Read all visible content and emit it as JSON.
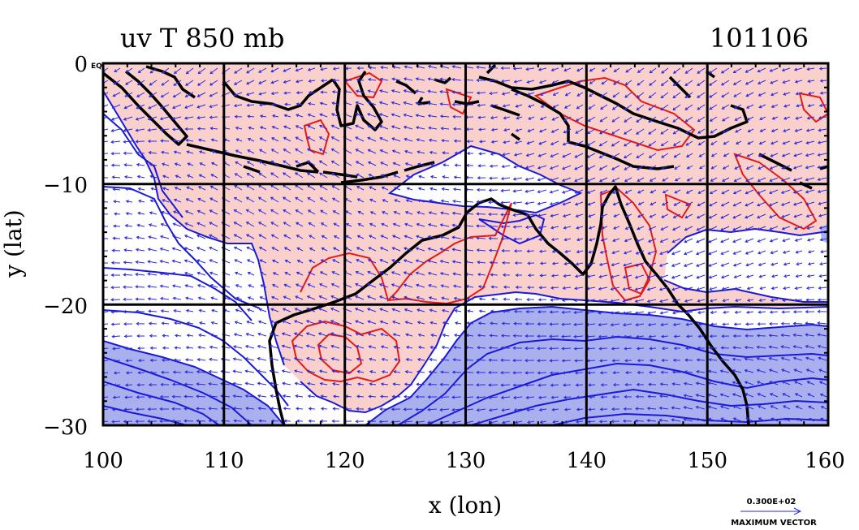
{
  "title_left": "uv T 850 mb",
  "title_right": "101106",
  "xlabel": "x (lon)",
  "ylabel": "y (lat)",
  "x_ticks": [
    "100",
    "110",
    "120",
    "130",
    "140",
    "150",
    "160"
  ],
  "y_ticks": [
    "0",
    "−10",
    "−20",
    "−30"
  ],
  "eq_label": "EQ",
  "vector_legend": {
    "value": "0.300E+02",
    "label": "MAXIMUM VECTOR"
  },
  "colors": {
    "warm_fill": "#f9d0cc",
    "cool_fill": "#aab0ee",
    "warm_contour": "#e51919",
    "cool_contour": "#1a1ad6",
    "coast": "#000000",
    "vector": "#2a2ae0"
  },
  "chart_data": {
    "type": "map",
    "title": "uv T 850 mb",
    "subtitle": "101106",
    "xlabel": "x (lon)",
    "ylabel": "y (lat)",
    "xlim": [
      100,
      160
    ],
    "ylim": [
      -30,
      0
    ],
    "x_ticks": [
      100,
      110,
      120,
      130,
      140,
      150,
      160
    ],
    "y_ticks": [
      0,
      -10,
      -20,
      -30
    ],
    "grid": true,
    "fields": [
      "wind vectors (u,v)",
      "temperature contours"
    ],
    "max_vector": "0.300E+02"
  }
}
